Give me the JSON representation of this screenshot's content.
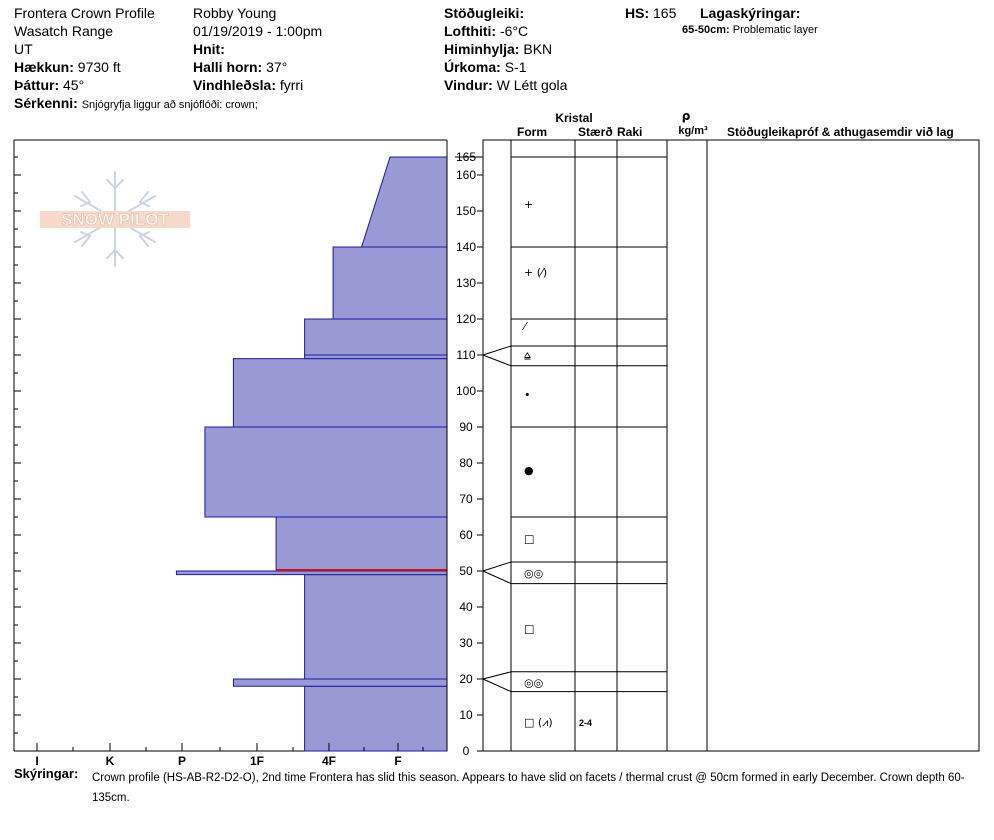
{
  "header": {
    "location": "Frontera Crown Profile",
    "range": "Wasatch Range",
    "state": "UT",
    "elevation_label": "Hækkun:",
    "elevation_value": "9730 ft",
    "aspect_label": "Þáttur:",
    "aspect_value": "45°",
    "features_label": "Sérkenni:",
    "features_value": "Snjógryfja liggur að snjóflóði: crown;",
    "observer": "Robby Young",
    "datetime": "01/19/2019 - 1:00pm",
    "coords_label": "Hnit:",
    "slope_label": "Halli horn:",
    "slope_value": "37°",
    "wind_loading_label": "Vindhleðsla:",
    "wind_loading_value": "fyrri",
    "stability_label": "Stöðugleiki:",
    "air_temp_label": "Lofthiti:",
    "air_temp_value": "-6°C",
    "sky_label": "Himinhylja:",
    "sky_value": "BKN",
    "precip_label": "Úrkoma:",
    "precip_value": "S-1",
    "wind_label": "Vindur:",
    "wind_value": "W Létt gola",
    "hs_label": "HS:",
    "hs_value": "165",
    "legend_label": "Lagaskýringar:",
    "legend_item_range": "65-50cm:",
    "legend_item_text": "Problematic layer"
  },
  "watermark": "SNOW PILOT",
  "table_headers": {
    "crystal": "Kristal",
    "form": "Form",
    "size": "Stærð",
    "moisture": "Raki",
    "density_symbol": "ρ",
    "density_unit": "kg/m³",
    "tests": "Stöðugleikapróf & athugasemdir við lag"
  },
  "comments": {
    "label": "Skýringar:",
    "text": "Crown profile (HS-AB-R2-D2-O), 2nd time Frontera has slid this season. Appears to have slid on facets / thermal crust @ 50cm formed in early December.  Crown depth 60-135cm."
  },
  "colors": {
    "hardness_fill": "#9999d5",
    "hardness_stroke": "#1a1a9a",
    "problem_layer": "#cc1111",
    "grid": "#000000",
    "watermark": "#e8a888"
  },
  "chart_data": {
    "type": "bar",
    "title": "",
    "xlabel": "",
    "ylabel": "",
    "ylim": [
      0,
      170
    ],
    "x_tick_labels": [
      "I",
      "K",
      "P",
      "1F",
      "4F",
      "F"
    ],
    "y_ticks": [
      0,
      10,
      20,
      30,
      40,
      50,
      60,
      70,
      80,
      90,
      100,
      110,
      120,
      130,
      140,
      150,
      160,
      165
    ],
    "hardness_scale_note": "hardness index: F=1, 4F=2, 1F=3, P=4, K=5, I=6",
    "hardness_profile": [
      {
        "bottom": 0,
        "top": 18,
        "hardness": 2
      },
      {
        "bottom": 18,
        "top": 20,
        "hardness": 3
      },
      {
        "bottom": 20,
        "top": 49,
        "hardness": 2
      },
      {
        "bottom": 49,
        "top": 50,
        "hardness": 3.8
      },
      {
        "bottom": 50,
        "top": 65,
        "hardness": 2.4
      },
      {
        "bottom": 65,
        "top": 90,
        "hardness": 3.4
      },
      {
        "bottom": 90,
        "top": 109,
        "hardness": 3
      },
      {
        "bottom": 109,
        "top": 110,
        "hardness": 2
      },
      {
        "bottom": 110,
        "top": 120,
        "hardness": 2
      },
      {
        "bottom": 120,
        "top": 140,
        "hardness": 1.6
      },
      {
        "bottom": 140,
        "top": 165,
        "hardness": 1.2,
        "hardness_top": 0.8
      }
    ],
    "problem_layer_cm": 50,
    "layer_boundaries": [
      165,
      140,
      120,
      112.5,
      107,
      90,
      65,
      52.5,
      46.5,
      22,
      16.5,
      0
    ],
    "boundary_callouts": [
      110,
      50,
      20
    ],
    "crystals": [
      {
        "height": 152,
        "form": "+"
      },
      {
        "height": 133,
        "form": "+ (⁄)"
      },
      {
        "height": 118,
        "form": "⁄"
      },
      {
        "height": 110,
        "form": "⩠"
      },
      {
        "height": 99,
        "form": "•"
      },
      {
        "height": 78,
        "form": "●"
      },
      {
        "height": 59,
        "form": "□"
      },
      {
        "height": 49.5,
        "form": "◎◎"
      },
      {
        "height": 34,
        "form": "□"
      },
      {
        "height": 19,
        "form": "◎◎"
      },
      {
        "height": 8,
        "form": "□ (⩘)",
        "size": "2-4"
      }
    ]
  }
}
